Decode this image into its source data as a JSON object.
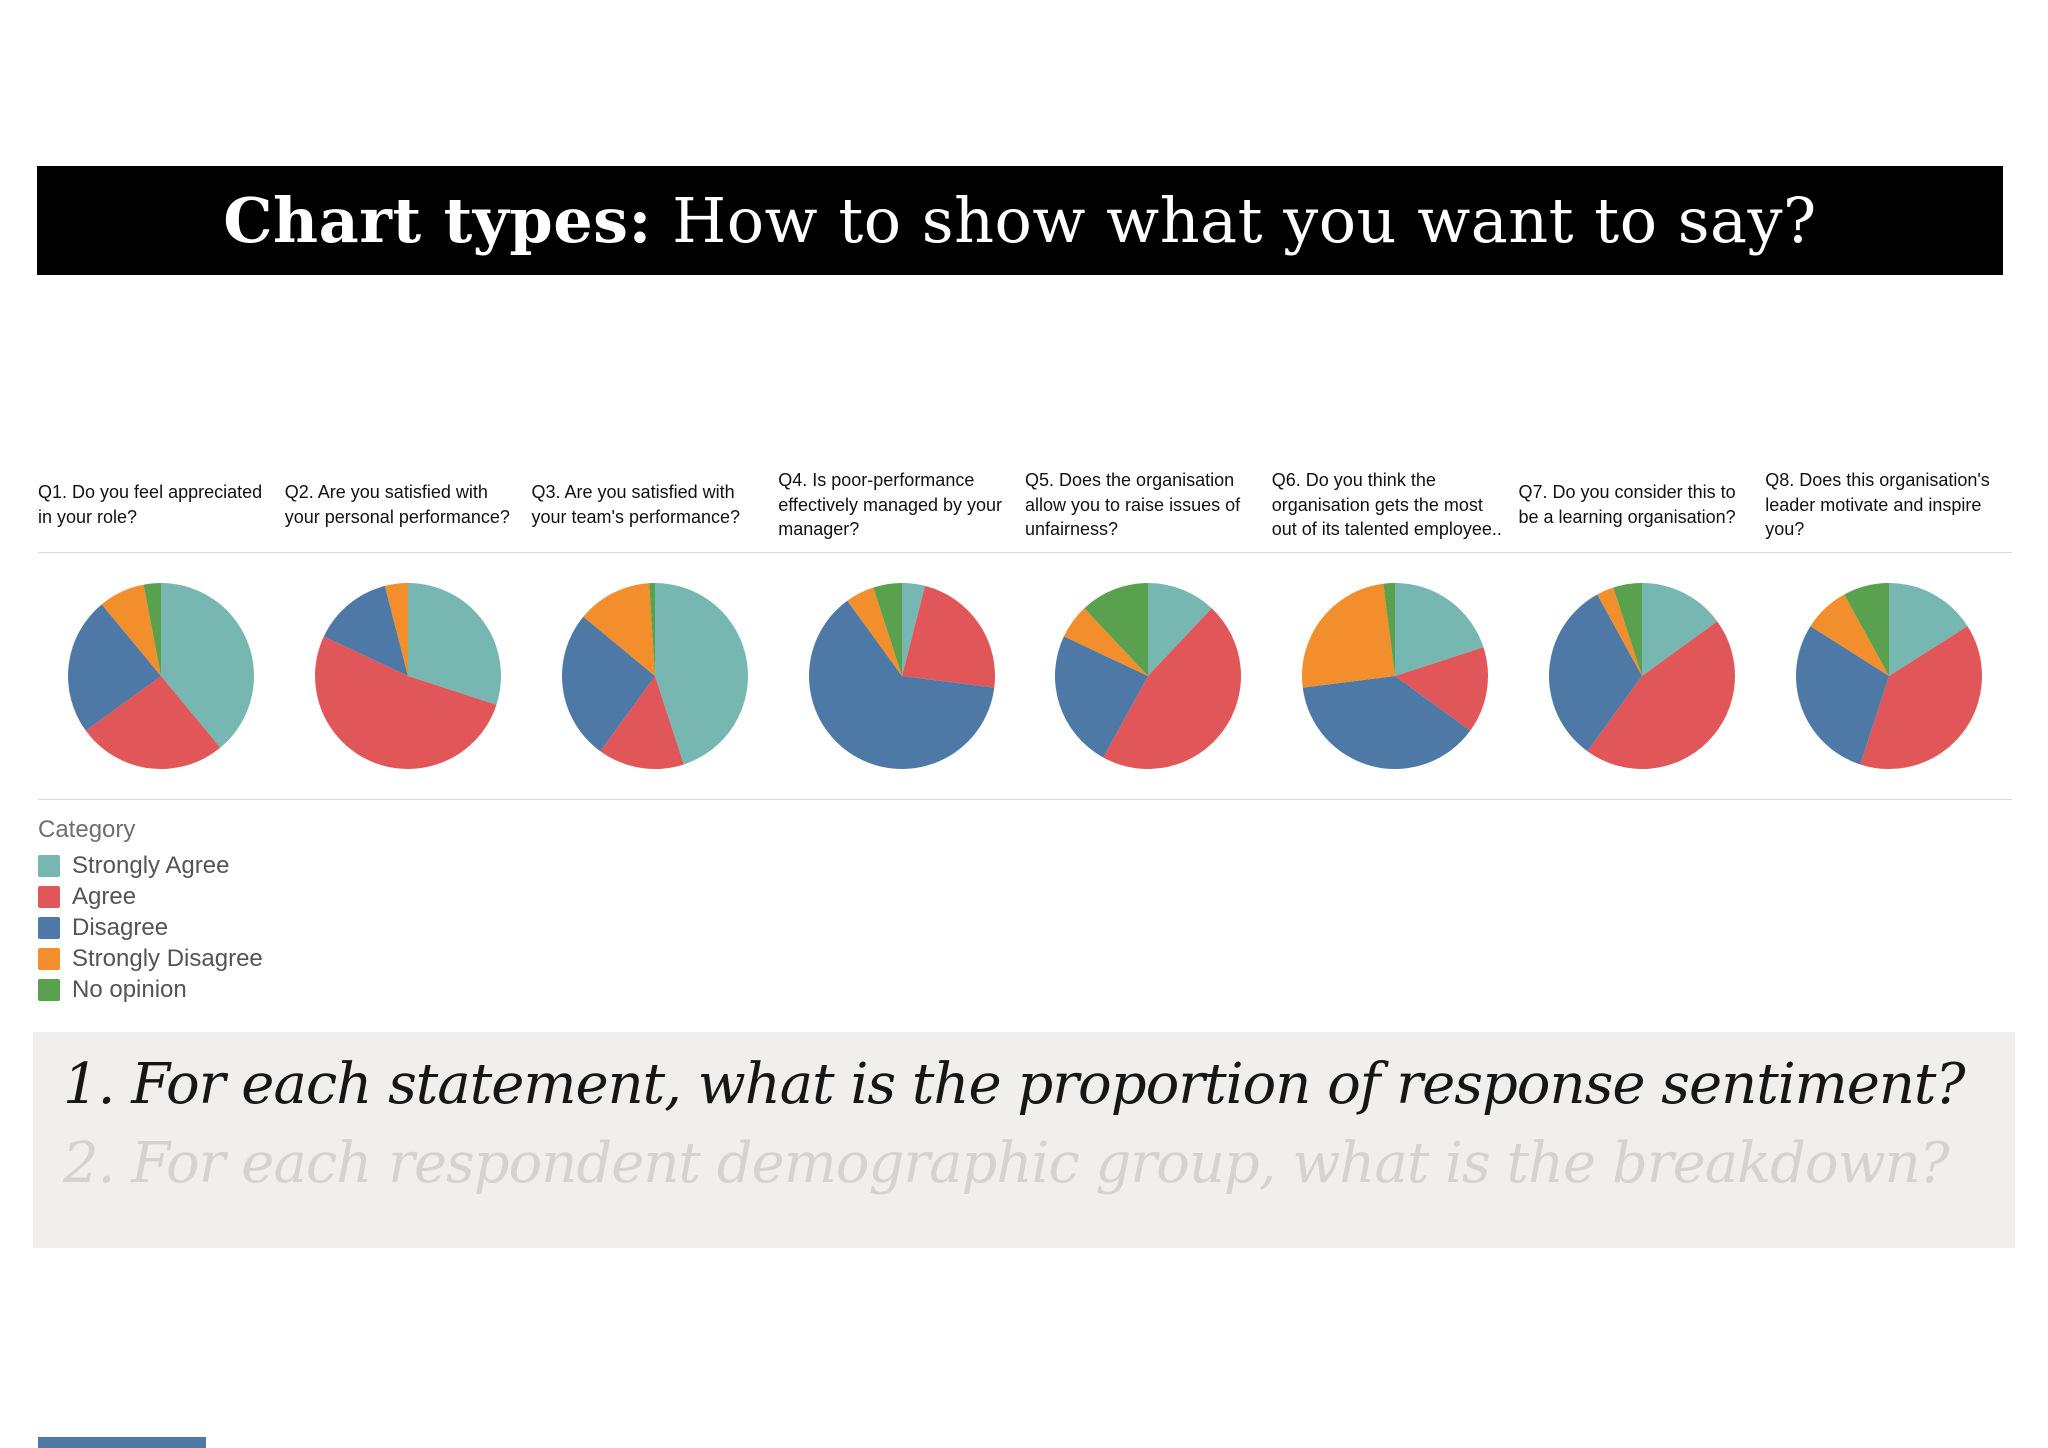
{
  "header": {
    "title_bold": "Chart types:",
    "title_rest": " How to show what you want to say?"
  },
  "colors": {
    "banner_bg": "#000000",
    "banner_text": "#ffffff",
    "prompt_box_bg": "#f0efed",
    "prompt_active_text": "#161616",
    "prompt_inactive_text": "#d5d3d0",
    "divider": "#d9d9d9",
    "strongly_agree": "#76b7b2",
    "agree": "#e15759",
    "disagree": "#4e79a7",
    "strongly_disagree": "#f28e2b",
    "no_opinion": "#59a14f"
  },
  "chart_data": {
    "type": "pie",
    "legend_title": "Category",
    "categories": [
      "Strongly Agree",
      "Agree",
      "Disagree",
      "Strongly Disagree",
      "No opinion"
    ],
    "category_colors": [
      "#76b7b2",
      "#e15759",
      "#4e79a7",
      "#f28e2b",
      "#59a14f"
    ],
    "note": "values are percent of responses per question, slices drawn clockwise from 12 o'clock in category order",
    "pies": [
      {
        "id": "q1",
        "label": "Q1. Do you feel appreciated in your role?",
        "values": [
          39,
          26,
          24,
          8,
          3
        ]
      },
      {
        "id": "q2",
        "label": "Q2. Are you satisfied with your personal performance?",
        "values": [
          30,
          52,
          14,
          4,
          0
        ]
      },
      {
        "id": "q3",
        "label": "Q3. Are you satisfied with your team's performance?",
        "values": [
          45,
          15,
          26,
          13,
          1
        ]
      },
      {
        "id": "q4",
        "label": "Q4. Is poor-performance effectively managed by your manager?",
        "values": [
          4,
          23,
          63,
          5,
          5
        ]
      },
      {
        "id": "q5",
        "label": "Q5. Does the organisation allow you to raise issues of unfairness?",
        "values": [
          12,
          46,
          24,
          6,
          12
        ]
      },
      {
        "id": "q6",
        "label": "Q6. Do you think the organisation gets the most out of its talented employee..",
        "values": [
          20,
          15,
          38,
          25,
          2
        ]
      },
      {
        "id": "q7",
        "label": "Q7. Do you consider this to be a learning organisation?",
        "values": [
          15,
          45,
          32,
          3,
          5
        ]
      },
      {
        "id": "q8",
        "label": "Q8. Does this organisation's leader motivate and inspire you?",
        "values": [
          16,
          39,
          29,
          8,
          8
        ]
      }
    ]
  },
  "prompts": {
    "line1": "1. For each statement, what is the proportion of response sentiment?",
    "line2": "2. For each respondent demographic group, what is the breakdown?"
  }
}
